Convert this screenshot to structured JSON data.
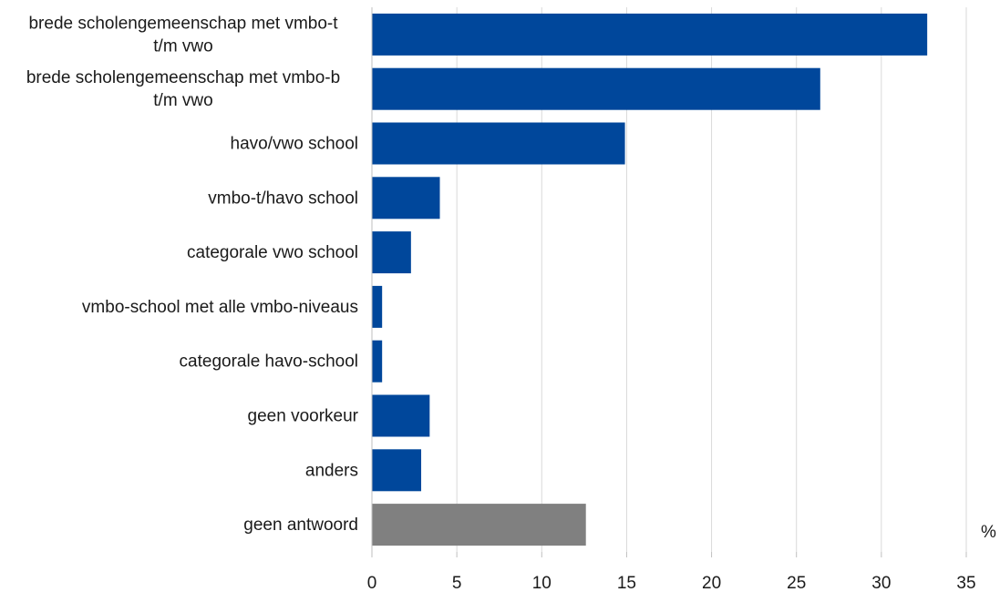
{
  "chart_data": {
    "type": "bar",
    "orientation": "horizontal",
    "unit_label": "%",
    "xlim": [
      0,
      35
    ],
    "ticks": [
      0,
      5,
      10,
      15,
      20,
      25,
      30,
      35
    ],
    "grid": "vertical",
    "categories": [
      [
        "brede scholengemeenschap met vmbo-t",
        "t/m vwo"
      ],
      [
        "brede scholengemeenschap met vmbo-b",
        "t/m vwo"
      ],
      [
        "havo/vwo school"
      ],
      [
        "vmbo-t/havo school"
      ],
      [
        "categorale vwo school"
      ],
      [
        "vmbo-school met alle vmbo-niveaus"
      ],
      [
        "categorale havo-school"
      ],
      [
        "geen voorkeur"
      ],
      [
        "anders"
      ],
      [
        "geen antwoord"
      ]
    ],
    "values": [
      32.7,
      26.4,
      14.9,
      4.0,
      2.3,
      0.6,
      0.6,
      3.4,
      2.9,
      12.6
    ],
    "colors": [
      "#00479B",
      "#00479B",
      "#00479B",
      "#00479B",
      "#00479B",
      "#00479B",
      "#00479B",
      "#00479B",
      "#00479B",
      "#808080"
    ],
    "grid_color": "#D9D9D9",
    "axis_color": "#BFBFBF"
  }
}
